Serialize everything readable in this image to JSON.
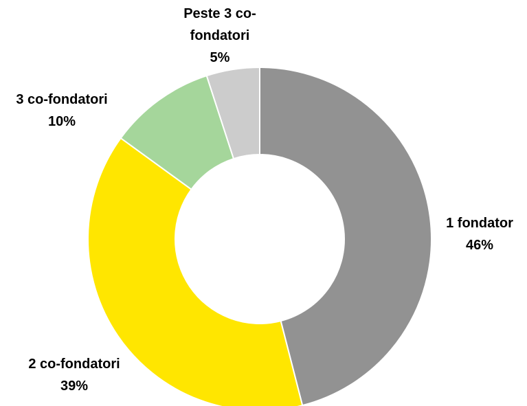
{
  "chart_data": {
    "type": "donut",
    "categories": [
      "1 fondator",
      "2 co-fondatori",
      "3 co-fondatori",
      "Peste 3 co-fondatori"
    ],
    "values": [
      46,
      39,
      10,
      5
    ],
    "value_labels": [
      "46%",
      "39%",
      "10%",
      "5%"
    ],
    "colors": [
      "#929292",
      "#ffe600",
      "#a5d69b",
      "#cccccc"
    ]
  }
}
